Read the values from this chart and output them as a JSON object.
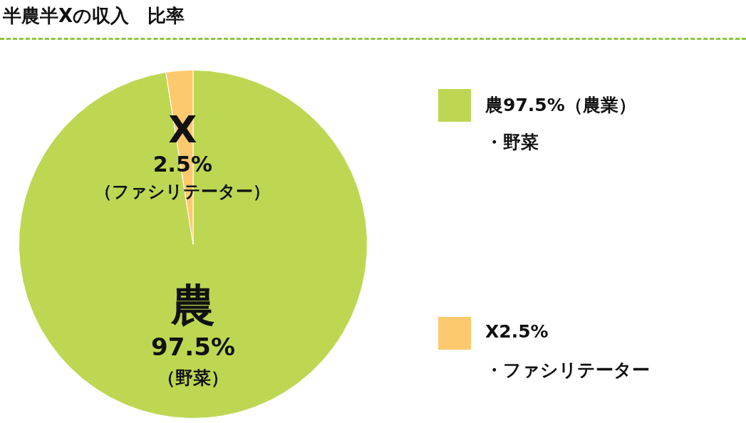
{
  "chart_data": {
    "type": "pie",
    "title": "半農半Xの収入　比率",
    "categories": [
      "農",
      "X"
    ],
    "values": [
      97.5,
      2.5
    ],
    "value_labels": [
      "97.5%",
      "2.5%"
    ],
    "colors": [
      "#bdd753",
      "#fcc96f"
    ],
    "annotations": [
      "（野菜）",
      "（ファシリテーター）",
      "農97.5%（農業）",
      "・野菜",
      "X2.5%",
      "・ファシリテーター"
    ]
  }
}
